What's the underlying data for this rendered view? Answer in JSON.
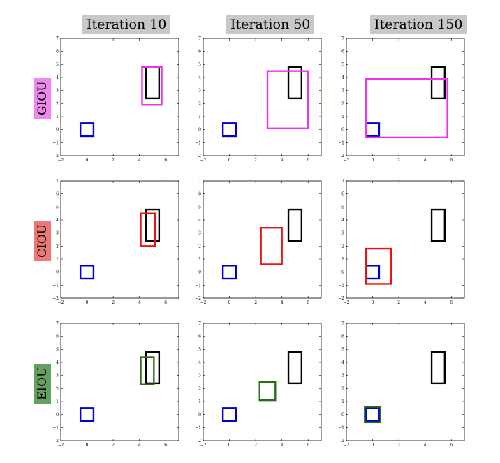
{
  "column_titles": [
    "Iteration 10",
    "Iteration 50",
    "Iteration 150"
  ],
  "row_labels": [
    "GIOU",
    "CIOU",
    "EIOU"
  ],
  "colors": {
    "GIOU": "#ee33ee",
    "CIOU": "#ee1111",
    "EIOU": "#2a6e18",
    "target": "#000000",
    "anchor": "#0000cc",
    "label_GIOU": "#ee88ee",
    "label_CIOU": "#ee7777",
    "label_EIOU": "#66a060",
    "title_bg": "#c8c8c8"
  },
  "chart_data": [
    {
      "type": "scatter",
      "method": "GIOU",
      "iteration": 10,
      "xlim": [
        -2,
        7
      ],
      "ylim": [
        -2,
        7
      ],
      "xticks": [
        -2,
        0,
        2,
        4,
        6
      ],
      "yticks": [
        -2,
        -1,
        0,
        1,
        2,
        3,
        4,
        5,
        6,
        7
      ],
      "boxes": [
        {
          "role": "target",
          "x1": 4.5,
          "y1": 2.4,
          "x2": 5.5,
          "y2": 4.8
        },
        {
          "role": "anchor",
          "x1": -0.5,
          "y1": -0.5,
          "x2": 0.5,
          "y2": 0.5
        },
        {
          "role": "predicted",
          "x1": 4.2,
          "y1": 1.9,
          "x2": 5.7,
          "y2": 4.8
        }
      ]
    },
    {
      "type": "scatter",
      "method": "GIOU",
      "iteration": 50,
      "xlim": [
        -2,
        7
      ],
      "ylim": [
        -2,
        7
      ],
      "xticks": [
        -2,
        0,
        2,
        4,
        6
      ],
      "yticks": [
        -2,
        -1,
        0,
        1,
        2,
        3,
        4,
        5,
        6,
        7
      ],
      "boxes": [
        {
          "role": "target",
          "x1": 4.5,
          "y1": 2.4,
          "x2": 5.5,
          "y2": 4.8
        },
        {
          "role": "anchor",
          "x1": -0.5,
          "y1": -0.5,
          "x2": 0.5,
          "y2": 0.5
        },
        {
          "role": "predicted",
          "x1": 2.9,
          "y1": 0.1,
          "x2": 6.0,
          "y2": 4.5
        }
      ]
    },
    {
      "type": "scatter",
      "method": "GIOU",
      "iteration": 150,
      "xlim": [
        -2,
        7
      ],
      "ylim": [
        -2,
        7
      ],
      "xticks": [
        -2,
        0,
        2,
        4,
        6
      ],
      "yticks": [
        -2,
        -1,
        0,
        1,
        2,
        3,
        4,
        5,
        6,
        7
      ],
      "boxes": [
        {
          "role": "target",
          "x1": 4.5,
          "y1": 2.4,
          "x2": 5.5,
          "y2": 4.8
        },
        {
          "role": "anchor",
          "x1": -0.5,
          "y1": -0.5,
          "x2": 0.5,
          "y2": 0.5
        },
        {
          "role": "predicted",
          "x1": -0.5,
          "y1": -0.6,
          "x2": 5.7,
          "y2": 3.9
        }
      ]
    },
    {
      "type": "scatter",
      "method": "CIOU",
      "iteration": 10,
      "xlim": [
        -2,
        7
      ],
      "ylim": [
        -2,
        7
      ],
      "xticks": [
        -2,
        0,
        2,
        4,
        6
      ],
      "yticks": [
        -2,
        -1,
        0,
        1,
        2,
        3,
        4,
        5,
        6,
        7
      ],
      "boxes": [
        {
          "role": "target",
          "x1": 4.5,
          "y1": 2.4,
          "x2": 5.5,
          "y2": 4.8
        },
        {
          "role": "anchor",
          "x1": -0.5,
          "y1": -0.5,
          "x2": 0.5,
          "y2": 0.5
        },
        {
          "role": "predicted",
          "x1": 4.1,
          "y1": 2.0,
          "x2": 5.2,
          "y2": 4.5
        }
      ]
    },
    {
      "type": "scatter",
      "method": "CIOU",
      "iteration": 50,
      "xlim": [
        -2,
        7
      ],
      "ylim": [
        -2,
        7
      ],
      "xticks": [
        -2,
        0,
        2,
        4,
        6
      ],
      "yticks": [
        -2,
        -1,
        0,
        1,
        2,
        3,
        4,
        5,
        6,
        7
      ],
      "boxes": [
        {
          "role": "target",
          "x1": 4.5,
          "y1": 2.4,
          "x2": 5.5,
          "y2": 4.8
        },
        {
          "role": "anchor",
          "x1": -0.5,
          "y1": -0.5,
          "x2": 0.5,
          "y2": 0.5
        },
        {
          "role": "predicted",
          "x1": 2.4,
          "y1": 0.6,
          "x2": 4.0,
          "y2": 3.4
        }
      ]
    },
    {
      "type": "scatter",
      "method": "CIOU",
      "iteration": 150,
      "xlim": [
        -2,
        7
      ],
      "ylim": [
        -2,
        7
      ],
      "xticks": [
        -2,
        0,
        2,
        4,
        6
      ],
      "yticks": [
        -2,
        -1,
        0,
        1,
        2,
        3,
        4,
        5,
        6,
        7
      ],
      "boxes": [
        {
          "role": "target",
          "x1": 4.5,
          "y1": 2.4,
          "x2": 5.5,
          "y2": 4.8
        },
        {
          "role": "anchor",
          "x1": -0.5,
          "y1": -0.5,
          "x2": 0.5,
          "y2": 0.5
        },
        {
          "role": "predicted",
          "x1": -0.5,
          "y1": -0.9,
          "x2": 1.4,
          "y2": 1.8
        }
      ]
    },
    {
      "type": "scatter",
      "method": "EIOU",
      "iteration": 10,
      "xlim": [
        -2,
        7
      ],
      "ylim": [
        -2,
        7
      ],
      "xticks": [
        -2,
        0,
        2,
        4,
        6
      ],
      "yticks": [
        -2,
        -1,
        0,
        1,
        2,
        3,
        4,
        5,
        6,
        7
      ],
      "boxes": [
        {
          "role": "target",
          "x1": 4.5,
          "y1": 2.4,
          "x2": 5.5,
          "y2": 4.8
        },
        {
          "role": "anchor",
          "x1": -0.5,
          "y1": -0.5,
          "x2": 0.5,
          "y2": 0.5
        },
        {
          "role": "predicted",
          "x1": 4.1,
          "y1": 2.3,
          "x2": 5.1,
          "y2": 4.4
        }
      ]
    },
    {
      "type": "scatter",
      "method": "EIOU",
      "iteration": 50,
      "xlim": [
        -2,
        7
      ],
      "ylim": [
        -2,
        7
      ],
      "xticks": [
        -2,
        0,
        2,
        4,
        6
      ],
      "yticks": [
        -2,
        -1,
        0,
        1,
        2,
        3,
        4,
        5,
        6,
        7
      ],
      "boxes": [
        {
          "role": "target",
          "x1": 4.5,
          "y1": 2.4,
          "x2": 5.5,
          "y2": 4.8
        },
        {
          "role": "anchor",
          "x1": -0.5,
          "y1": -0.5,
          "x2": 0.5,
          "y2": 0.5
        },
        {
          "role": "predicted",
          "x1": 2.3,
          "y1": 1.1,
          "x2": 3.5,
          "y2": 2.5
        }
      ]
    },
    {
      "type": "scatter",
      "method": "EIOU",
      "iteration": 150,
      "xlim": [
        -2,
        7
      ],
      "ylim": [
        -2,
        7
      ],
      "xticks": [
        -2,
        0,
        2,
        4,
        6
      ],
      "yticks": [
        -2,
        -1,
        0,
        1,
        2,
        3,
        4,
        5,
        6,
        7
      ],
      "boxes": [
        {
          "role": "target",
          "x1": 4.5,
          "y1": 2.4,
          "x2": 5.5,
          "y2": 4.8
        },
        {
          "role": "anchor",
          "x1": -0.5,
          "y1": -0.5,
          "x2": 0.5,
          "y2": 0.5
        },
        {
          "role": "predicted",
          "x1": -0.6,
          "y1": -0.6,
          "x2": 0.6,
          "y2": 0.6
        }
      ]
    }
  ]
}
